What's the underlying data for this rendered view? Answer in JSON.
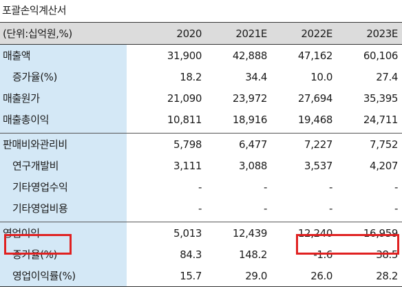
{
  "title": "포괄손익계산서",
  "header": {
    "unit": "(단위:십억원,%)",
    "years": [
      "2020",
      "2021E",
      "2022E",
      "2023E"
    ]
  },
  "rows": [
    {
      "label": "매출액",
      "values": [
        "31,900",
        "42,888",
        "47,162",
        "60,106"
      ]
    },
    {
      "label": "증가율(%)",
      "values": [
        "18.2",
        "34.4",
        "10.0",
        "27.4"
      ]
    },
    {
      "label": "매출원가",
      "values": [
        "21,090",
        "23,972",
        "27,694",
        "35,395"
      ]
    },
    {
      "label": "매출총이익",
      "values": [
        "10,811",
        "18,916",
        "19,468",
        "24,711"
      ]
    },
    {
      "label": "판매비와관리비",
      "values": [
        "5,798",
        "6,477",
        "7,227",
        "7,752"
      ]
    },
    {
      "label": "연구개발비",
      "values": [
        "3,111",
        "3,088",
        "3,537",
        "4,207"
      ]
    },
    {
      "label": "기타영업수익",
      "values": [
        "-",
        "-",
        "-",
        "-"
      ]
    },
    {
      "label": "기타영업비용",
      "values": [
        "-",
        "-",
        "-",
        "-"
      ]
    },
    {
      "label": "영업이익",
      "values": [
        "5,013",
        "12,439",
        "12,240",
        "16,959"
      ]
    },
    {
      "label": "증가율(%)",
      "values": [
        "84.3",
        "148.2",
        "-1.6",
        "38.5"
      ]
    },
    {
      "label": "영업이익률(%)",
      "values": [
        "15.7",
        "29.0",
        "26.0",
        "28.2"
      ]
    }
  ],
  "highlight_color": "#e02020"
}
